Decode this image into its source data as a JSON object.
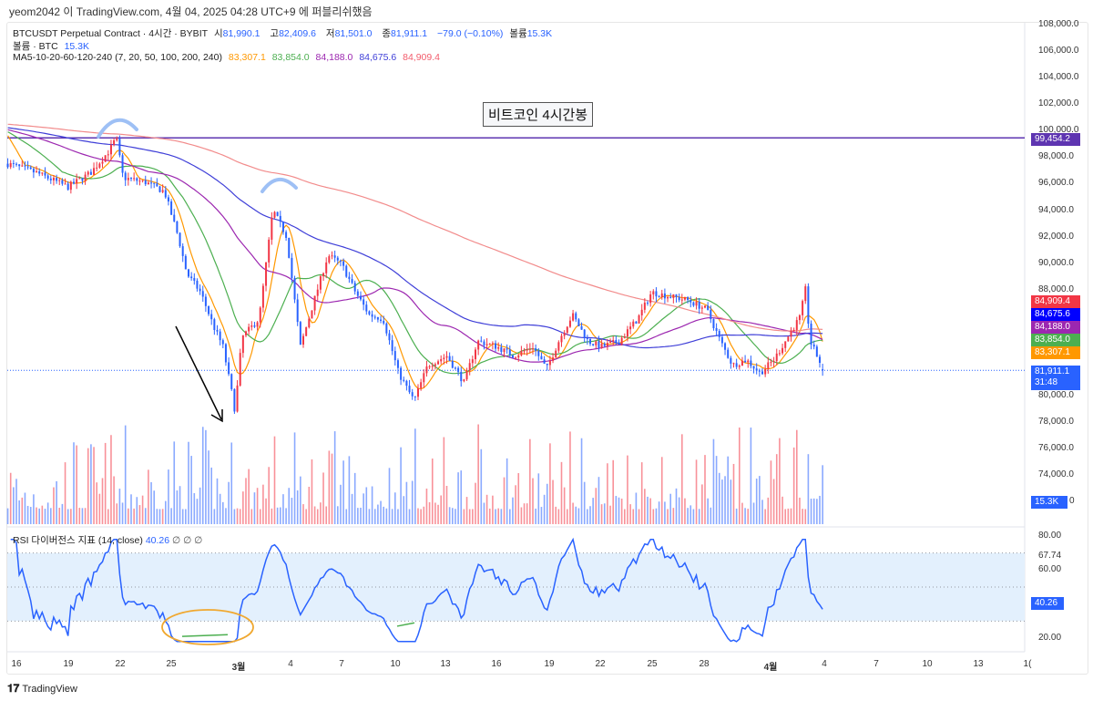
{
  "publisher_line": "yeom2042 이 TradingView.com, 4월 04, 2025 04:28 UTC+9 에 퍼블리쉬했음",
  "legend": {
    "symbol": "BTCUSDT Perpetual Contract · 4시간 · BYBIT",
    "open_label": "시",
    "open": "81,990.1",
    "high_label": "고",
    "high": "82,409.6",
    "low_label": "저",
    "low": "81,501.0",
    "close_label": "종",
    "close": "81,911.1",
    "change": "−79.0 (−0.10%)",
    "volume_label": "볼륨",
    "volume": "15.3K",
    "volume_indicator": "볼륨 · BTC",
    "volume_indicator_value": "15.3K",
    "ma_name": "MA5-10-20-60-120-240 (7, 20, 50, 100, 200, 240)",
    "ma_values": [
      "83,307.1",
      "83,854.0",
      "84,188.0",
      "84,675.6",
      "84,909.4"
    ]
  },
  "annotation_text": "비트코인 4시간봉",
  "price_axis": [
    "108,000.0",
    "106,000.0",
    "104,000.0",
    "102,000.0",
    "100,000.0",
    "98,000.0",
    "96,000.0",
    "94,000.0",
    "92,000.0",
    "90,000.0",
    "88,000.0",
    "80,000.0",
    "78,000.0",
    "76,000.0",
    "74,000.0"
  ],
  "price_badges": [
    {
      "text": "99,454.2",
      "color": "#5e35b1",
      "price": 99454.2
    },
    {
      "text": "84,909.4",
      "color": "#f23645",
      "price": 84909.4
    },
    {
      "text": "84,675.6",
      "color": "#0000ff",
      "price": 84675.6
    },
    {
      "text": "84,188.0",
      "color": "#9c27b0",
      "price": 84188.0
    },
    {
      "text": "83,854.0",
      "color": "#4caf50",
      "price": 83854.0
    },
    {
      "text": "83,307.1",
      "color": "#ff9800",
      "price": 83307.1
    }
  ],
  "last_price_badge": {
    "price": "81,911.1",
    "countdown": "31:48",
    "color": "#2962ff"
  },
  "volume_axis": {
    "badge": "15.3K",
    "zero": "0"
  },
  "rsi": {
    "legend": "RSI 다이버전스 지표 (14, close)",
    "value": "40.26",
    "extras": "∅ ∅ ∅",
    "axis": [
      "80.00",
      "67.74",
      "60.00",
      "20.00"
    ],
    "badge": "40.26"
  },
  "x_axis": [
    "16",
    "19",
    "22",
    "25",
    "3월",
    "4",
    "7",
    "10",
    "13",
    "16",
    "19",
    "22",
    "25",
    "28",
    "4월",
    "4",
    "7",
    "10",
    "13",
    "1("
  ],
  "logo_text": "TradingView",
  "colors": {
    "up": "#f23645",
    "down": "#2962ff",
    "ma": [
      "#ff9800",
      "#4caf50",
      "#9c27b0",
      "#3f3fd8",
      "#f28b8b"
    ],
    "hline": "#5e35b1"
  },
  "chart_data": {
    "type": "candlestick",
    "title": "BTCUSDT Perpetual Contract · 4시간 · BYBIT",
    "x_unit": "days since Feb 16, 2025",
    "close_keypoints": [
      [
        -0.5,
        97500
      ],
      [
        1.2,
        96800
      ],
      [
        3.0,
        95750
      ],
      [
        4.3,
        96800
      ],
      [
        5.4,
        98500
      ],
      [
        5.8,
        99450
      ],
      [
        6.2,
        96450
      ],
      [
        7.5,
        96100
      ],
      [
        8.6,
        95400
      ],
      [
        9.4,
        92000
      ],
      [
        9.9,
        89200
      ],
      [
        10.7,
        87800
      ],
      [
        11.5,
        85100
      ],
      [
        12.0,
        83700
      ],
      [
        12.5,
        80300
      ],
      [
        12.7,
        78800
      ],
      [
        13.1,
        84400
      ],
      [
        14.1,
        85800
      ],
      [
        14.9,
        94000
      ],
      [
        15.7,
        92000
      ],
      [
        16.5,
        83700
      ],
      [
        17.3,
        87200
      ],
      [
        18.1,
        90600
      ],
      [
        18.9,
        89900
      ],
      [
        19.7,
        87800
      ],
      [
        20.5,
        86100
      ],
      [
        21.3,
        85800
      ],
      [
        22.2,
        81700
      ],
      [
        23.1,
        79600
      ],
      [
        23.9,
        82300
      ],
      [
        25.0,
        83000
      ],
      [
        26.0,
        81000
      ],
      [
        26.8,
        84100
      ],
      [
        27.9,
        83700
      ],
      [
        28.9,
        83000
      ],
      [
        30.0,
        83700
      ],
      [
        30.8,
        82000
      ],
      [
        31.6,
        84400
      ],
      [
        32.3,
        86100
      ],
      [
        33.2,
        84100
      ],
      [
        34.0,
        83700
      ],
      [
        35.0,
        84100
      ],
      [
        36.1,
        85800
      ],
      [
        36.9,
        87800
      ],
      [
        37.9,
        87500
      ],
      [
        39.0,
        87200
      ],
      [
        40.1,
        86500
      ],
      [
        40.9,
        84100
      ],
      [
        41.6,
        82300
      ],
      [
        42.4,
        82700
      ],
      [
        43.2,
        81700
      ],
      [
        44.0,
        82700
      ],
      [
        44.8,
        84400
      ],
      [
        45.6,
        86100
      ],
      [
        45.8,
        88500
      ],
      [
        46.1,
        84100
      ],
      [
        46.9,
        81911
      ]
    ],
    "horizontal_line": 99454.2,
    "ylim": [
      73000,
      109000
    ],
    "rsi_ylim": [
      15,
      82
    ],
    "rsi_bands": [
      30,
      50,
      70
    ]
  }
}
